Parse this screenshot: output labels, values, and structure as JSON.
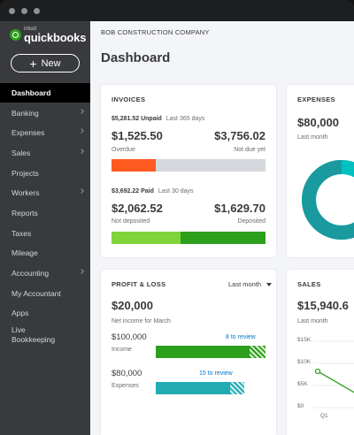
{
  "sidebar": {
    "logo_intuit": "intuit",
    "logo_name": "quickbooks",
    "new_label": "New",
    "items": [
      {
        "label": "Dashboard"
      },
      {
        "label": "Banking"
      },
      {
        "label": "Expenses"
      },
      {
        "label": "Sales"
      },
      {
        "label": "Projects"
      },
      {
        "label": "Workers"
      },
      {
        "label": "Reports"
      },
      {
        "label": "Taxes"
      },
      {
        "label": "Mileage"
      },
      {
        "label": "Accounting"
      },
      {
        "label": "My Accountant"
      },
      {
        "label": "Apps"
      },
      {
        "label": "Live Bookkeeping"
      }
    ]
  },
  "header": {
    "company": "BOB CONSTRUCTION COMPANY",
    "title": "Dashboard"
  },
  "invoices": {
    "title": "INVOICES",
    "unpaid_amount": "$5,281.52 Unpaid",
    "unpaid_period": "Last 365 days",
    "overdue_value": "$1,525.50",
    "overdue_label": "Overdue",
    "not_due_value": "$3,756.02",
    "not_due_label": "Not due yet",
    "unpaid_fraction": 0.29,
    "paid_amount": "$3,692.22 Paid",
    "paid_period": "Last 30 days",
    "not_deposited_value": "$2,062.52",
    "not_deposited_label": "Not deposited",
    "deposited_value": "$1,629.70",
    "deposited_label": "Deposited",
    "paid_fraction": 0.45
  },
  "expenses": {
    "title": "EXPENSES",
    "value": "$80,000",
    "period": "Last month"
  },
  "profit_loss": {
    "title": "PROFIT & LOSS",
    "period": "Last month",
    "value": "$20,000",
    "caption": "Net income for March",
    "income_value": "$100,000",
    "income_label": "Income",
    "income_review": "8 to review",
    "expenses_value": "$80,000",
    "expenses_label": "Expenses",
    "expenses_review": "15 to review"
  },
  "sales": {
    "title": "SALES",
    "value": "$15,940.6",
    "period": "Last month",
    "chart_data": {
      "type": "line",
      "y_ticks": [
        "$15K",
        "$10K",
        "$5K",
        "$0"
      ],
      "x_ticks": [
        "Q1"
      ]
    }
  },
  "colors": {
    "sidebar": "#393a3d",
    "overdue": "#ff5a1f",
    "paid_light": "#7fd43b",
    "paid_dark": "#2ca01c",
    "teal": "#21abb3",
    "green": "#2ca01c"
  }
}
